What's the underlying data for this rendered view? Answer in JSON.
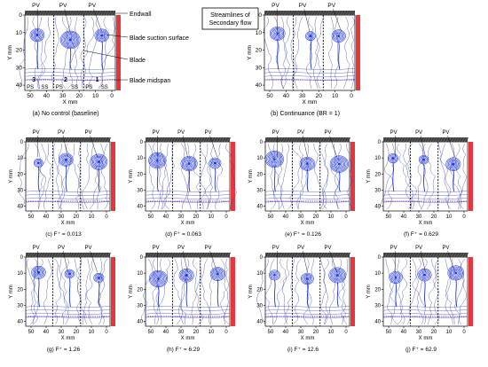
{
  "panels": [
    {
      "caption": "(a) No control (baseline)",
      "pv_labels": [
        "PV",
        "PV",
        "PV"
      ]
    },
    {
      "caption": "(b) Continuance (BR = 1)",
      "pv_labels": [
        "PV",
        "PV",
        "PV"
      ]
    },
    {
      "caption": "(c) F⁺ = 0.013",
      "pv_labels": [
        "PV",
        "PV",
        "PV"
      ]
    },
    {
      "caption": "(d) F⁺ = 0.063",
      "pv_labels": [
        "PV",
        "PV",
        "PV"
      ]
    },
    {
      "caption": "(e) F⁺ = 0.126",
      "pv_labels": [
        "PV",
        "PV",
        "PV"
      ]
    },
    {
      "caption": "(f) F⁺ = 0.629",
      "pv_labels": [
        "PV",
        "PV",
        "PV"
      ]
    },
    {
      "caption": "(g) F⁺ = 1.26",
      "pv_labels": [
        "PV",
        "PV",
        "PV"
      ]
    },
    {
      "caption": "(h) F⁺ = 6.29",
      "pv_labels": [
        "PV",
        "PV",
        "PV"
      ]
    },
    {
      "caption": "(i) F⁺ = 12.6",
      "pv_labels": [
        "PV",
        "PV",
        "PV"
      ]
    },
    {
      "caption": "(j) F⁺ = 62.9",
      "pv_labels": [
        "PV",
        "PV",
        "PV"
      ]
    }
  ],
  "axes": {
    "xlabel": "X mm",
    "ylabel": "Y mm",
    "x_ticks": [
      "50",
      "40",
      "30",
      "20",
      "10",
      "0"
    ],
    "y_ticks": [
      "0",
      "10",
      "20",
      "30",
      "40"
    ]
  },
  "annotations": {
    "endwall": "Endwall",
    "suction_surface": "Blade suction surface",
    "blade": "Blade",
    "midspan": "Blade midspan",
    "legend_box": [
      "Streamlines of",
      "Secondary flow"
    ],
    "passage_labels": [
      "PS",
      "SS",
      "PS",
      "SS",
      "PS",
      "SS"
    ],
    "passage_numbers": [
      "3",
      "2",
      "1"
    ]
  },
  "colors": {
    "streamline": "#2a3aa8",
    "vortex": "#1f36e0",
    "blade_bar": "#e8343a",
    "midspan_line": "#7a2ad0",
    "endwall": "#555555"
  }
}
